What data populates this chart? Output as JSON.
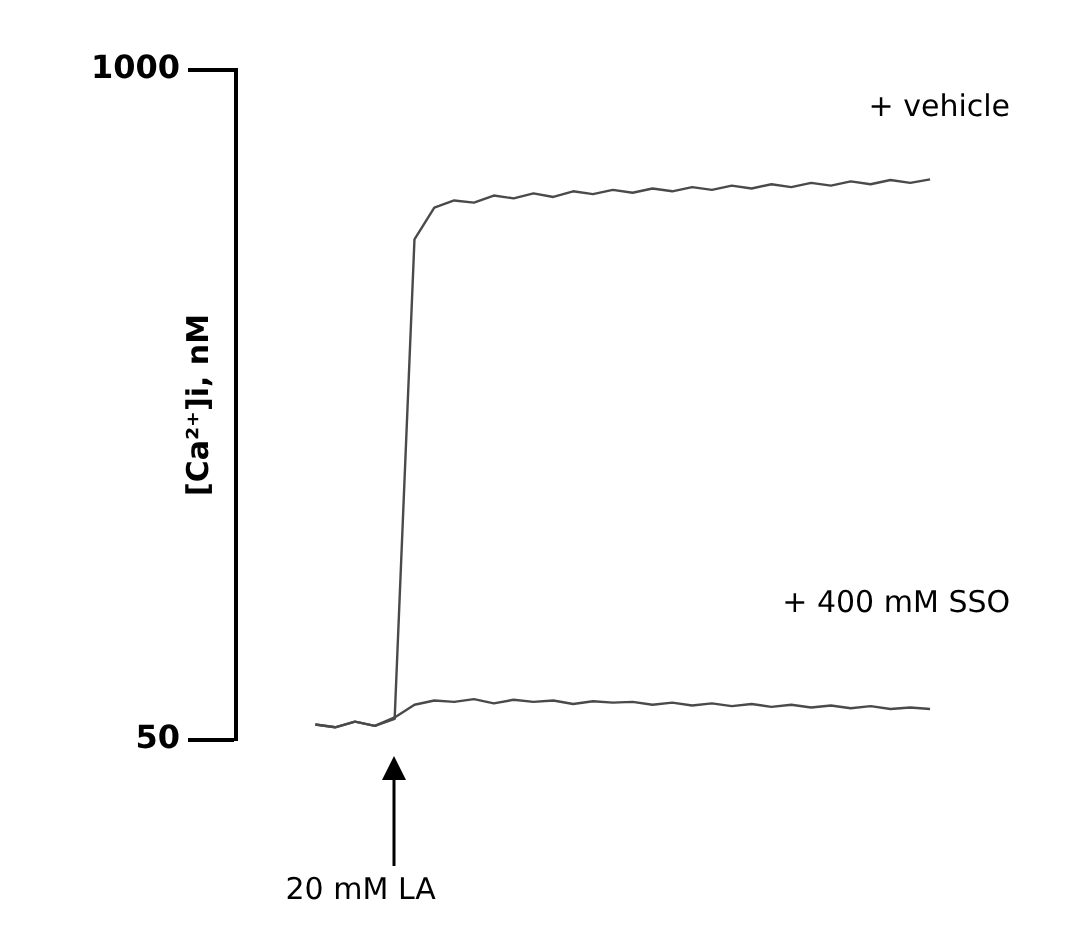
{
  "chart_data": {
    "type": "line",
    "ylabel": "[Ca²⁺]i, nM",
    "ylim": [
      50,
      1000
    ],
    "yticks": [
      50,
      1000
    ],
    "grid": false,
    "legend": false,
    "marker": "none",
    "line_style": "solid",
    "tick_labels": "y",
    "categories": [
      null,
      null,
      null,
      null,
      null,
      null,
      null,
      null,
      null,
      null,
      null,
      null,
      null,
      null,
      null,
      null,
      null,
      null,
      null,
      null,
      null,
      null,
      null,
      null,
      null,
      null,
      null,
      null,
      null,
      null,
      null,
      null
    ],
    "series": [
      {
        "name": "+ vehicle",
        "color": "#4a4a4a",
        "values": [
          72,
          68,
          76,
          70,
          80,
          760,
          805,
          815,
          812,
          822,
          818,
          825,
          820,
          828,
          824,
          830,
          826,
          832,
          828,
          834,
          830,
          836,
          832,
          838,
          834,
          840,
          836,
          842,
          838,
          844,
          840,
          845
        ]
      },
      {
        "name": "+ 400 mM SSO",
        "color": "#4a4a4a",
        "values": [
          72,
          68,
          76,
          70,
          82,
          100,
          106,
          104,
          108,
          102,
          107,
          104,
          106,
          101,
          105,
          103,
          104,
          100,
          103,
          99,
          102,
          98,
          101,
          97,
          100,
          96,
          99,
          95,
          98,
          94,
          96,
          94
        ]
      }
    ],
    "annotations": [
      "20 mM LA"
    ]
  }
}
